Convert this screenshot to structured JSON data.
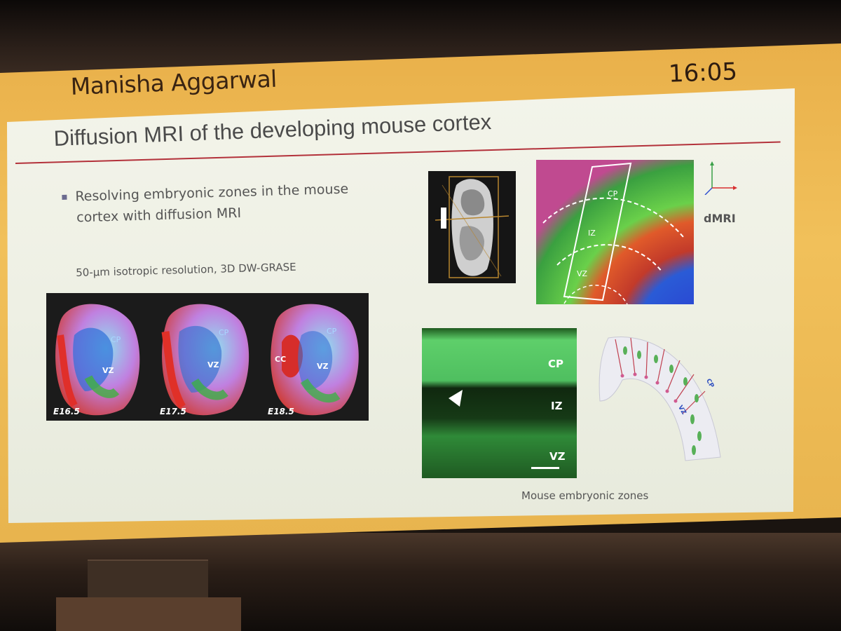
{
  "header": {
    "speaker": "Manisha Aggarwal",
    "clock": "16:05"
  },
  "slide": {
    "title": "Diffusion MRI of the developing mouse cortex",
    "bullet_line1": "Resolving embryonic zones in the mouse",
    "bullet_line2": "cortex with diffusion MRI",
    "resolution_caption": "50-µm isotropic resolution, 3D DW-GRASE",
    "triptych": {
      "panels": [
        {
          "stage": "E16.5",
          "cp": "CP",
          "vz": "VZ"
        },
        {
          "stage": "E17.5",
          "cp": "CP",
          "vz": "VZ"
        },
        {
          "stage": "E18.5",
          "cp": "CP",
          "vz": "VZ",
          "cc": "CC"
        }
      ]
    },
    "dmri_panel": {
      "label": "dMRI",
      "zones": [
        "CP",
        "IZ",
        "VZ"
      ]
    },
    "histology_panel": {
      "zones": [
        "CP",
        "IZ",
        "VZ"
      ]
    },
    "schematic": {
      "cp": "CP",
      "vz": "VZ"
    },
    "zones_caption": "Mouse embryonic zones"
  },
  "colors": {
    "screen_frame": "#f1c05a",
    "slide_bg": "#eef0e4",
    "title_rule": "#b3313a"
  }
}
